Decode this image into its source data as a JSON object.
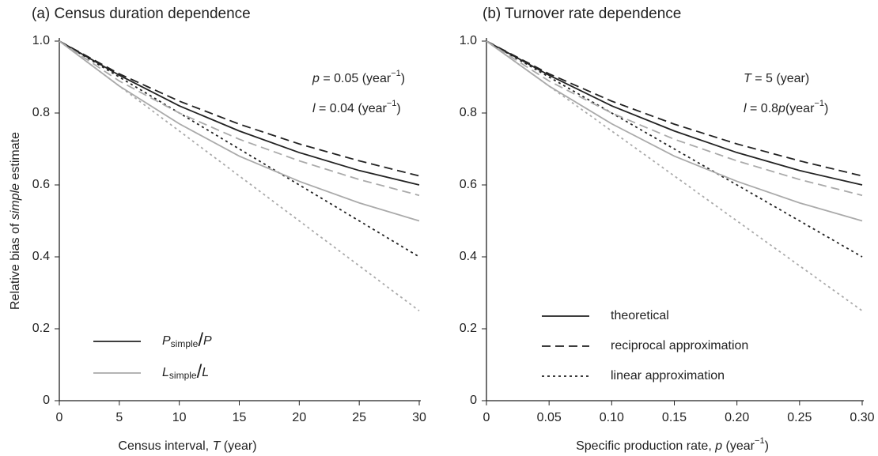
{
  "chart_data": [
    {
      "type": "line",
      "title": "(a) Census duration dependence",
      "xlabel": [
        {
          "text": "Census interval, ",
          "style": "n"
        },
        {
          "text": "T",
          "style": "i"
        },
        {
          "text": " (year)",
          "style": "n"
        }
      ],
      "ylabel": [
        {
          "text": "Relative bias of ",
          "style": "n"
        },
        {
          "text": "simple",
          "style": "i"
        },
        {
          "text": " estimate",
          "style": "n"
        }
      ],
      "x": [
        0,
        5,
        10,
        15,
        20,
        25,
        30
      ],
      "xlim": [
        0,
        30
      ],
      "xticks": [
        0,
        5,
        10,
        15,
        20,
        25,
        30
      ],
      "ylim": [
        0,
        1
      ],
      "yticks": [
        0,
        0.2,
        0.4,
        0.6,
        0.8,
        {
          "value": 1,
          "label": "1.0"
        }
      ],
      "series": [
        {
          "color": "#222222",
          "dash": "solid",
          "values": [
            1,
            0.905,
            0.82,
            0.75,
            0.69,
            0.64,
            0.6
          ]
        },
        {
          "color": "#222222",
          "dash": "dashed",
          "values": [
            1,
            0.909,
            0.833,
            0.769,
            0.714,
            0.667,
            0.625
          ]
        },
        {
          "color": "#222222",
          "dash": "dotted",
          "values": [
            1,
            0.9,
            0.8,
            0.7,
            0.6,
            0.5,
            0.4
          ]
        },
        {
          "color": "#aaaaaa",
          "dash": "solid",
          "values": [
            1,
            0.875,
            0.77,
            0.68,
            0.61,
            0.55,
            0.5
          ]
        },
        {
          "color": "#aaaaaa",
          "dash": "dashed",
          "values": [
            1,
            0.889,
            0.8,
            0.727,
            0.667,
            0.615,
            0.571
          ]
        },
        {
          "color": "#aaaaaa",
          "dash": "dotted",
          "values": [
            1,
            0.875,
            0.75,
            0.625,
            0.5,
            0.375,
            0.25
          ]
        }
      ],
      "annotations": [
        [
          {
            "text": "p",
            "style": "i"
          },
          {
            "text": " = 0.05 (year",
            "style": "n"
          },
          {
            "text": "−1",
            "style": "sup"
          },
          {
            "text": ")",
            "style": "n"
          }
        ],
        [
          {
            "text": "l",
            "style": "i"
          },
          {
            "text": " = 0.04 (year",
            "style": "n"
          },
          {
            "text": "−1",
            "style": "sup"
          },
          {
            "text": ")",
            "style": "n"
          }
        ]
      ],
      "legend": [
        {
          "color": "#222222",
          "dash": "solid",
          "parts": [
            {
              "text": "P",
              "style": "i"
            },
            {
              "text": "simple",
              "style": "sub"
            },
            {
              "text": "/",
              "style": "big"
            },
            {
              "text": "P",
              "style": "i"
            }
          ]
        },
        {
          "color": "#aaaaaa",
          "dash": "solid",
          "parts": [
            {
              "text": "L",
              "style": "i"
            },
            {
              "text": "simple",
              "style": "sub"
            },
            {
              "text": "/",
              "style": "big"
            },
            {
              "text": "L",
              "style": "i"
            }
          ]
        }
      ]
    },
    {
      "type": "line",
      "title": "(b) Turnover rate dependence",
      "xlabel": [
        {
          "text": "Specific production rate, ",
          "style": "n"
        },
        {
          "text": "p",
          "style": "i"
        },
        {
          "text": " (year",
          "style": "n"
        },
        {
          "text": "−1",
          "style": "sup"
        },
        {
          "text": ")",
          "style": "n"
        }
      ],
      "x": [
        0,
        0.05,
        0.1,
        0.15,
        0.2,
        0.25,
        0.3
      ],
      "xlim": [
        0,
        0.3
      ],
      "xticks": [
        0,
        0.05,
        {
          "value": 0.1,
          "label": "0.10"
        },
        0.15,
        {
          "value": 0.2,
          "label": "0.20"
        },
        0.25,
        {
          "value": 0.3,
          "label": "0.30"
        }
      ],
      "ylim": [
        0,
        1
      ],
      "yticks": [
        0,
        0.2,
        0.4,
        0.6,
        0.8,
        {
          "value": 1,
          "label": "1.0"
        }
      ],
      "series": [
        {
          "color": "#222222",
          "dash": "solid",
          "values": [
            1,
            0.905,
            0.82,
            0.75,
            0.69,
            0.64,
            0.6
          ]
        },
        {
          "color": "#222222",
          "dash": "dashed",
          "values": [
            1,
            0.909,
            0.833,
            0.769,
            0.714,
            0.667,
            0.625
          ]
        },
        {
          "color": "#222222",
          "dash": "dotted",
          "values": [
            1,
            0.9,
            0.8,
            0.7,
            0.6,
            0.5,
            0.4
          ]
        },
        {
          "color": "#aaaaaa",
          "dash": "solid",
          "values": [
            1,
            0.875,
            0.77,
            0.68,
            0.61,
            0.55,
            0.5
          ]
        },
        {
          "color": "#aaaaaa",
          "dash": "dashed",
          "values": [
            1,
            0.889,
            0.8,
            0.727,
            0.667,
            0.615,
            0.571
          ]
        },
        {
          "color": "#aaaaaa",
          "dash": "dotted",
          "values": [
            1,
            0.875,
            0.75,
            0.625,
            0.5,
            0.375,
            0.25
          ]
        }
      ],
      "annotations": [
        [
          {
            "text": "T",
            "style": "i"
          },
          {
            "text": " = 5 (year)",
            "style": "n"
          }
        ],
        [
          {
            "text": "l",
            "style": "i"
          },
          {
            "text": " = 0.8",
            "style": "n"
          },
          {
            "text": "p",
            "style": "i"
          },
          {
            "text": "(year",
            "style": "n"
          },
          {
            "text": "−1",
            "style": "sup"
          },
          {
            "text": ")",
            "style": "n"
          }
        ]
      ],
      "legend": [
        {
          "color": "#222222",
          "dash": "solid",
          "parts": [
            {
              "text": "theoretical",
              "style": "n"
            }
          ]
        },
        {
          "color": "#222222",
          "dash": "dashed",
          "parts": [
            {
              "text": "reciprocal approximation",
              "style": "n"
            }
          ]
        },
        {
          "color": "#222222",
          "dash": "dotted",
          "parts": [
            {
              "text": "linear approximation",
              "style": "n"
            }
          ]
        }
      ]
    }
  ]
}
